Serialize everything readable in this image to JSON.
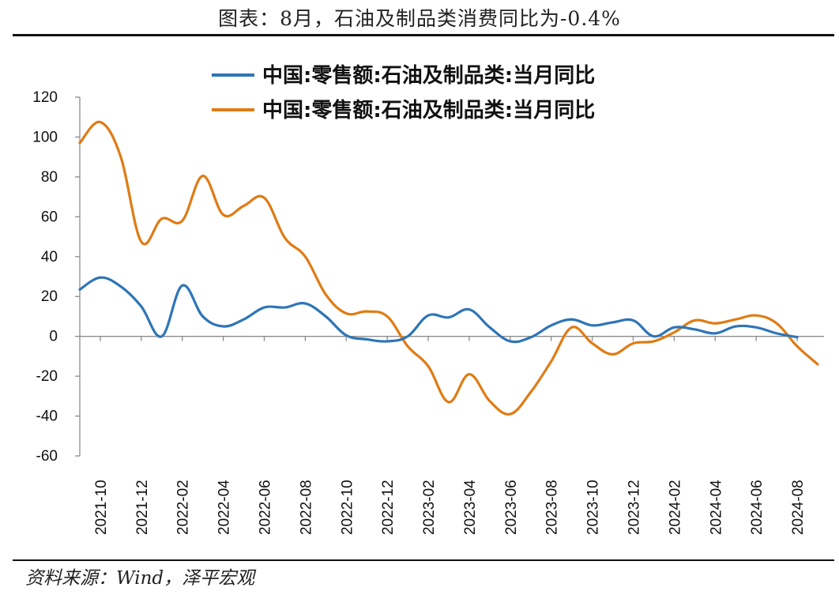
{
  "header": {
    "title": "图表：8月，石油及制品类消费同比为-0.4%"
  },
  "footer": {
    "source": "资料来源：Wind，泽平宏观"
  },
  "chart_data": {
    "type": "line",
    "title": "图表：8月，石油及制品类消费同比为-0.4%",
    "xlabel": "",
    "ylabel": "",
    "ylim": [
      -60,
      120
    ],
    "yticks": [
      -60,
      -40,
      -20,
      0,
      20,
      40,
      60,
      80,
      100,
      120
    ],
    "x": [
      "2021-09",
      "2021-10",
      "2021-11",
      "2021-12",
      "2022-01",
      "2022-02",
      "2022-03",
      "2022-04",
      "2022-05",
      "2022-06",
      "2022-07",
      "2022-08",
      "2022-09",
      "2022-10",
      "2022-11",
      "2022-12",
      "2023-01",
      "2023-02",
      "2023-03",
      "2023-04",
      "2023-05",
      "2023-06",
      "2023-07",
      "2023-08",
      "2023-09",
      "2023-10",
      "2023-11",
      "2023-12",
      "2024-01",
      "2024-02",
      "2024-03",
      "2024-04",
      "2024-05",
      "2024-06",
      "2024-07",
      "2024-08",
      "2024-09"
    ],
    "xtick_labels": [
      "2021-10",
      "2021-12",
      "2022-02",
      "2022-04",
      "2022-06",
      "2022-08",
      "2022-10",
      "2022-12",
      "2023-02",
      "2023-04",
      "2023-06",
      "2023-08",
      "2023-10",
      "2023-12",
      "2024-02",
      "2024-04",
      "2024-06",
      "2024-08"
    ],
    "legend_position": "top-center",
    "grid": false,
    "series": [
      {
        "name": "中国:零售额:石油及制品类:当月同比",
        "color": "#2e75b6",
        "values": [
          23.5,
          29.5,
          25.0,
          15.0,
          0.0,
          25.5,
          10.0,
          5.0,
          8.5,
          14.5,
          14.5,
          16.5,
          10.0,
          0.5,
          -1.5,
          -2.5,
          0.0,
          10.5,
          9.5,
          13.5,
          4.5,
          -2.5,
          -0.5,
          5.5,
          8.5,
          5.5,
          7.0,
          8.0,
          0.0,
          4.5,
          3.5,
          1.5,
          5.0,
          4.5,
          1.5,
          -0.4,
          null
        ]
      },
      {
        "name": "中国:零售额:石油及制品类:当月同比",
        "color": "#e07b14",
        "values": [
          97.0,
          107.5,
          90.0,
          47.5,
          59.0,
          58.0,
          80.5,
          61.0,
          65.5,
          69.5,
          49.5,
          40.0,
          21.0,
          11.5,
          12.5,
          10.0,
          -5.0,
          -15.0,
          -33.0,
          -19.0,
          -32.5,
          -39.0,
          -28.0,
          -12.5,
          4.5,
          -3.5,
          -9.0,
          -3.5,
          -2.5,
          2.0,
          8.0,
          6.5,
          8.5,
          10.5,
          6.5,
          -5.0,
          -14.0
        ]
      }
    ]
  }
}
